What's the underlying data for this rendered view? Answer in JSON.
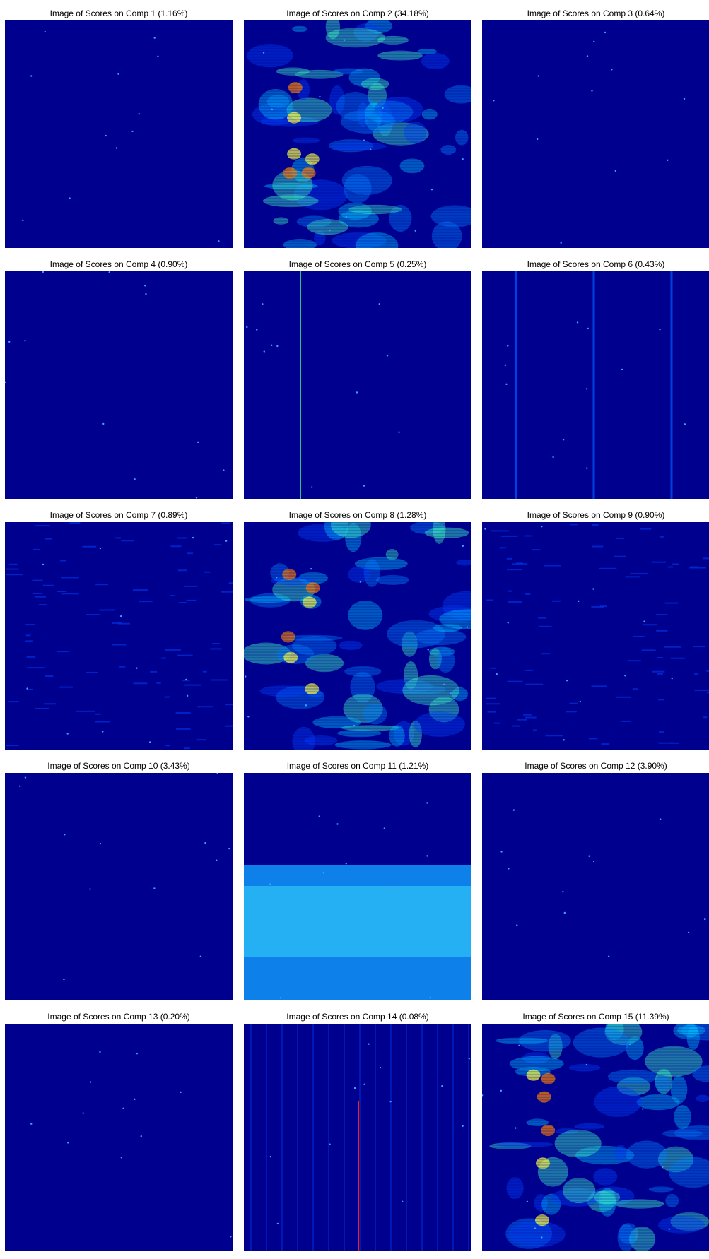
{
  "panels": [
    {
      "title": "Image of Scores on Comp 1 (1.16%)"
    },
    {
      "title": "Image of Scores on Comp 2 (34.18%)"
    },
    {
      "title": "Image of Scores on Comp 3 (0.64%)"
    },
    {
      "title": "Image of Scores on Comp 4 (0.90%)"
    },
    {
      "title": "Image of Scores on Comp 5 (0.25%)"
    },
    {
      "title": "Image of Scores on Comp 6 (0.43%)"
    },
    {
      "title": "Image of Scores on Comp 7 (0.89%)"
    },
    {
      "title": "Image of Scores on Comp 8 (1.28%)"
    },
    {
      "title": "Image of Scores on Comp 9 (0.90%)"
    },
    {
      "title": "Image of Scores on Comp 10 (3.43%)"
    },
    {
      "title": "Image of Scores on Comp 11 (1.21%)"
    },
    {
      "title": "Image of Scores on Comp 12 (3.90%)"
    },
    {
      "title": "Image of Scores on Comp 13 (0.20%)"
    },
    {
      "title": "Image of Scores on Comp 14 (0.08%)"
    },
    {
      "title": "Image of Scores on Comp 15 (11.39%)"
    }
  ]
}
